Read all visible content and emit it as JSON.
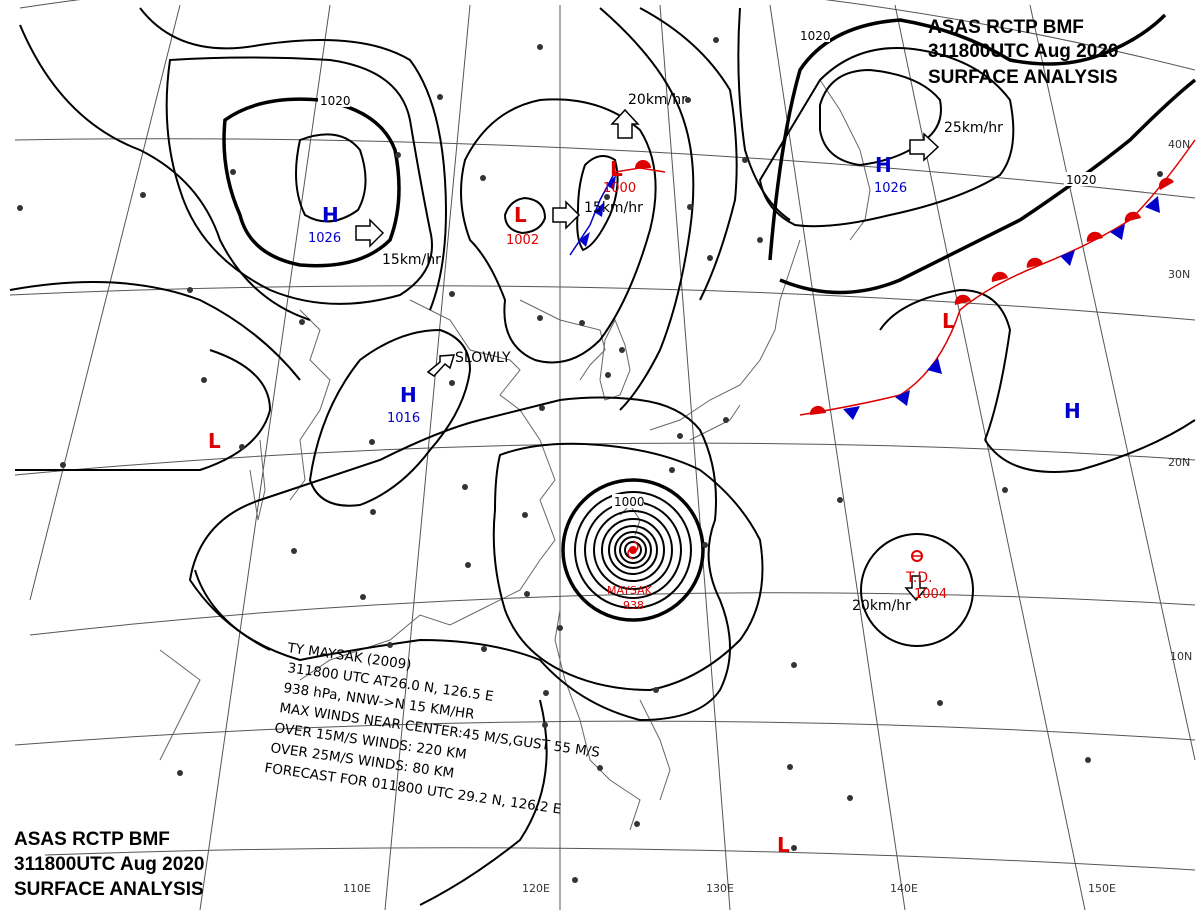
{
  "header": {
    "line1": "ASAS     RCTP     BMF",
    "line2": "311800UTC     Aug     2020",
    "line3": "SURFACE  ANALYSIS"
  },
  "footer_header": {
    "line1": "ASAS       RCTP      BMF",
    "line2": "311800UTC     Aug     2020",
    "line3": "SURFACE  ANALYSIS"
  },
  "grid": {
    "lat_labels": [
      "40N",
      "30N",
      "20N",
      "10N"
    ],
    "lon_labels": [
      "110E",
      "120E",
      "130E",
      "140E",
      "150E"
    ]
  },
  "isobar_labels": {
    "nw_1020": "1020",
    "ne_1020_top": "1020",
    "ne_1020_right": "1020",
    "ty_1000": "1000"
  },
  "systems": [
    {
      "id": "high-nw",
      "type": "H",
      "pressure": "1026",
      "color": "#0000cc"
    },
    {
      "id": "low-small",
      "type": "L",
      "pressure": "1002",
      "color": "#dd0000"
    },
    {
      "id": "low-korea",
      "type": "L",
      "pressure": "1000",
      "color": "#dd0000"
    },
    {
      "id": "high-ne",
      "type": "H",
      "pressure": "1026",
      "color": "#0000cc"
    },
    {
      "id": "high-central",
      "type": "H",
      "pressure": "1016",
      "color": "#0000cc"
    },
    {
      "id": "low-west",
      "type": "L",
      "pressure": "",
      "color": "#dd0000"
    },
    {
      "id": "high-east",
      "type": "H",
      "pressure": "",
      "color": "#0000cc"
    },
    {
      "id": "low-front",
      "type": "L",
      "pressure": "",
      "color": "#dd0000"
    },
    {
      "id": "low-south",
      "type": "L",
      "pressure": "",
      "color": "#dd0000"
    }
  ],
  "motions": {
    "high_nw": "15km/hr",
    "low_small": "15km/hr",
    "low_korea": "20km/hr",
    "high_ne": "25km/hr",
    "high_central": "SLOWLY",
    "td": "20km/hr"
  },
  "td": {
    "label": "T.D.",
    "pressure": "1004",
    "color": "#dd0000"
  },
  "typhoon": {
    "name": "MAYSAK",
    "pressure": "938",
    "color": "#dd0000",
    "info": [
      "TY  MAYSAK  (2009)",
      "311800 UTC  AT26.0 N, 126.5 E",
      "938 hPa, NNW->N  15 KM/HR",
      "MAX WINDS NEAR CENTER:45 M/S,GUST 55 M/S",
      "OVER 15M/S WINDS: 220 KM",
      "OVER 25M/S WINDS: 80 KM",
      "FORECAST FOR 011800 UTC 29.2 N, 126.2 E"
    ]
  },
  "colors": {
    "warm_front": "#dd0000",
    "cold_front": "#0000cc",
    "isobar": "#000000"
  }
}
